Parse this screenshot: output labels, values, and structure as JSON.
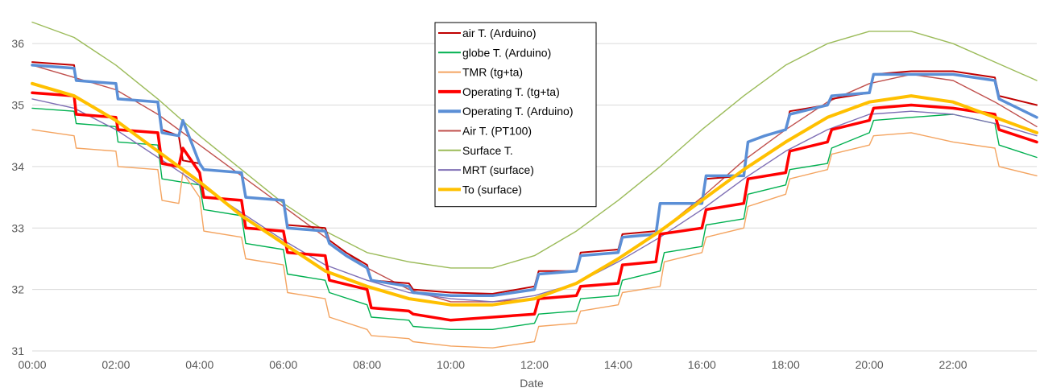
{
  "chart_data": {
    "type": "line",
    "title": "",
    "xlabel": "Date",
    "ylabel": "",
    "xlim": [
      0,
      24
    ],
    "ylim": [
      31,
      36.5
    ],
    "x_ticks": [
      "00:00",
      "02:00",
      "04:00",
      "06:00",
      "08:00",
      "10:00",
      "12:00",
      "14:00",
      "16:00",
      "18:00",
      "20:00",
      "22:00"
    ],
    "y_ticks": [
      "31",
      "32",
      "33",
      "34",
      "35",
      "36"
    ],
    "grid": "horizontal",
    "legend_position": "top-center",
    "series": [
      {
        "name": "air T. (Arduino)",
        "color": "#c00000",
        "width": 2,
        "x": [
          0,
          1,
          1.05,
          2,
          2.05,
          3,
          3.1,
          3.5,
          3.6,
          4,
          4.1,
          5,
          5.1,
          6,
          6.1,
          7,
          7.1,
          7.5,
          8,
          8.1,
          9,
          9.1,
          10,
          11,
          12,
          12.1,
          13,
          13.1,
          14,
          14.1,
          14.9,
          15,
          16,
          16.1,
          17,
          17.1,
          17.5,
          18,
          18.1,
          19,
          19.1,
          20,
          20.1,
          21,
          22,
          23,
          23.1,
          24
        ],
        "y": [
          35.7,
          35.65,
          35.4,
          35.35,
          35.1,
          35.05,
          34.6,
          34.5,
          34.1,
          34.05,
          33.95,
          33.9,
          33.5,
          33.45,
          33.05,
          33.0,
          32.8,
          32.6,
          32.4,
          32.15,
          32.1,
          32.0,
          31.95,
          31.93,
          32.05,
          32.3,
          32.3,
          32.6,
          32.65,
          32.9,
          32.95,
          33.4,
          33.4,
          33.8,
          33.85,
          34.4,
          34.5,
          34.6,
          34.9,
          35.0,
          35.1,
          35.2,
          35.5,
          35.55,
          35.55,
          35.45,
          35.15,
          35.0
        ]
      },
      {
        "name": "globe T. (Arduino)",
        "color": "#00b050",
        "width": 1.4,
        "x": [
          0,
          1,
          1.05,
          2,
          2.05,
          3,
          3.1,
          4,
          4.1,
          5,
          5.1,
          6,
          6.1,
          7,
          7.1,
          8,
          8.1,
          9,
          9.1,
          10,
          11,
          12,
          12.1,
          13,
          13.1,
          14,
          14.1,
          15,
          15.1,
          16,
          16.1,
          17,
          17.1,
          18,
          18.1,
          19,
          19.1,
          20,
          20.1,
          21,
          22,
          23,
          23.1,
          24
        ],
        "y": [
          34.95,
          34.9,
          34.7,
          34.65,
          34.4,
          34.35,
          33.8,
          33.7,
          33.3,
          33.2,
          32.75,
          32.65,
          32.25,
          32.15,
          31.95,
          31.75,
          31.55,
          31.5,
          31.4,
          31.35,
          31.35,
          31.45,
          31.6,
          31.65,
          31.85,
          31.9,
          32.15,
          32.3,
          32.6,
          32.7,
          33.05,
          33.15,
          33.55,
          33.7,
          33.95,
          34.05,
          34.3,
          34.55,
          34.75,
          34.8,
          34.85,
          34.7,
          34.35,
          34.15
        ]
      },
      {
        "name": "TMR (tg+ta)",
        "color": "#f4a460",
        "width": 1.4,
        "x": [
          0,
          1,
          1.05,
          2,
          2.05,
          3,
          3.1,
          3.5,
          3.6,
          4,
          4.1,
          5,
          5.1,
          6,
          6.1,
          7,
          7.1,
          8,
          8.1,
          9,
          9.1,
          10,
          11,
          12,
          12.1,
          13,
          13.1,
          14,
          14.1,
          15,
          15.1,
          16,
          16.1,
          17,
          17.1,
          18,
          18.1,
          19,
          19.1,
          20,
          20.1,
          21,
          22,
          23,
          23.1,
          24
        ],
        "y": [
          34.6,
          34.5,
          34.3,
          34.25,
          34.0,
          33.95,
          33.45,
          33.4,
          33.9,
          33.5,
          32.95,
          32.85,
          32.5,
          32.4,
          31.95,
          31.85,
          31.55,
          31.35,
          31.25,
          31.2,
          31.15,
          31.08,
          31.05,
          31.15,
          31.4,
          31.45,
          31.65,
          31.75,
          31.95,
          32.05,
          32.45,
          32.6,
          32.85,
          33.0,
          33.35,
          33.55,
          33.8,
          33.95,
          34.2,
          34.35,
          34.5,
          34.55,
          34.4,
          34.3,
          34.0,
          33.85
        ]
      },
      {
        "name": "Operating T. (tg+ta)",
        "color": "#ff0000",
        "width": 3.5,
        "x": [
          0,
          1,
          1.05,
          2,
          2.05,
          3,
          3.1,
          3.5,
          3.6,
          4,
          4.1,
          5,
          5.1,
          6,
          6.1,
          7,
          7.1,
          8,
          8.1,
          9,
          9.1,
          10,
          11,
          12,
          12.1,
          13,
          13.1,
          14,
          14.1,
          14.9,
          15,
          16,
          16.1,
          17,
          17.1,
          18,
          18.1,
          19,
          19.1,
          20,
          20.1,
          21,
          22,
          23,
          23.1,
          24
        ],
        "y": [
          35.2,
          35.15,
          34.85,
          34.8,
          34.6,
          34.55,
          34.05,
          34.0,
          34.3,
          33.9,
          33.5,
          33.45,
          33.0,
          32.95,
          32.6,
          32.55,
          32.15,
          32.0,
          31.7,
          31.65,
          31.6,
          31.5,
          31.55,
          31.6,
          31.85,
          31.9,
          32.05,
          32.1,
          32.4,
          32.45,
          32.9,
          33.0,
          33.3,
          33.4,
          33.8,
          33.9,
          34.25,
          34.4,
          34.6,
          34.75,
          34.95,
          35.0,
          34.95,
          34.85,
          34.6,
          34.4
        ]
      },
      {
        "name": "Operating T. (Arduino)",
        "color": "#5b8fd6",
        "width": 3.5,
        "x": [
          0,
          1,
          1.05,
          2,
          2.05,
          3,
          3.1,
          3.5,
          3.6,
          4,
          4.1,
          5,
          5.1,
          6,
          6.1,
          7,
          7.1,
          7.5,
          8,
          8.1,
          9,
          9.1,
          10,
          11,
          12,
          12.1,
          13,
          13.1,
          14,
          14.1,
          14.9,
          15,
          16,
          16.1,
          17,
          17.1,
          17.5,
          18,
          18.1,
          19,
          19.1,
          20,
          20.1,
          21,
          22,
          23,
          23.1,
          24
        ],
        "y": [
          35.65,
          35.6,
          35.4,
          35.35,
          35.1,
          35.05,
          34.55,
          34.5,
          34.75,
          34.05,
          33.95,
          33.9,
          33.5,
          33.45,
          33.0,
          32.95,
          32.75,
          32.55,
          32.35,
          32.15,
          32.05,
          31.95,
          31.9,
          31.9,
          32.0,
          32.25,
          32.3,
          32.55,
          32.6,
          32.85,
          32.9,
          33.4,
          33.4,
          33.85,
          33.85,
          34.4,
          34.5,
          34.6,
          34.85,
          35.0,
          35.15,
          35.2,
          35.5,
          35.5,
          35.5,
          35.4,
          35.1,
          34.8
        ]
      },
      {
        "name": "Air T. (PT100)",
        "color": "#c0504d",
        "width": 1.4,
        "x": [
          0,
          1,
          2,
          3,
          4,
          5,
          6,
          7,
          8,
          9,
          10,
          11,
          12,
          13,
          14,
          15,
          16,
          17,
          18,
          19,
          20,
          21,
          22,
          23,
          24
        ],
        "y": [
          35.65,
          35.45,
          35.25,
          34.85,
          34.35,
          33.85,
          33.35,
          32.85,
          32.35,
          32.0,
          31.8,
          31.8,
          31.85,
          32.1,
          32.5,
          32.95,
          33.5,
          34.1,
          34.6,
          35.05,
          35.35,
          35.5,
          35.4,
          35.05,
          34.65
        ]
      },
      {
        "name": "Surface T.",
        "color": "#9bbb59",
        "width": 1.4,
        "x": [
          0,
          1,
          2,
          3,
          4,
          5,
          6,
          7,
          8,
          9,
          10,
          11,
          12,
          13,
          14,
          15,
          16,
          17,
          18,
          19,
          20,
          21,
          22,
          23,
          24
        ],
        "y": [
          36.35,
          36.1,
          35.65,
          35.1,
          34.5,
          33.95,
          33.4,
          32.95,
          32.6,
          32.45,
          32.35,
          32.35,
          32.55,
          32.95,
          33.45,
          34.0,
          34.6,
          35.15,
          35.65,
          36.0,
          36.2,
          36.2,
          36.0,
          35.7,
          35.4
        ]
      },
      {
        "name": "MRT (surface)",
        "color": "#7f6fb5",
        "width": 1.4,
        "x": [
          0,
          1,
          2,
          3,
          4,
          5,
          6,
          7,
          8,
          9,
          10,
          11,
          12,
          13,
          14,
          15,
          16,
          17,
          18,
          19,
          20,
          21,
          22,
          23,
          24
        ],
        "y": [
          35.1,
          34.95,
          34.6,
          34.15,
          33.7,
          33.25,
          32.8,
          32.4,
          32.15,
          31.95,
          31.85,
          31.8,
          31.9,
          32.1,
          32.45,
          32.85,
          33.3,
          33.8,
          34.25,
          34.6,
          34.85,
          34.9,
          34.85,
          34.7,
          34.5
        ]
      },
      {
        "name": "To (surface)",
        "color": "#ffc000",
        "width": 4,
        "x": [
          0,
          1,
          2,
          3,
          4,
          5,
          6,
          7,
          8,
          9,
          10,
          11,
          12,
          13,
          14,
          15,
          16,
          17,
          18,
          19,
          20,
          21,
          22,
          23,
          24
        ],
        "y": [
          35.35,
          35.15,
          34.75,
          34.25,
          33.75,
          33.2,
          32.75,
          32.3,
          32.05,
          31.85,
          31.75,
          31.75,
          31.85,
          32.1,
          32.5,
          32.95,
          33.45,
          33.95,
          34.4,
          34.8,
          35.05,
          35.15,
          35.05,
          34.8,
          34.55
        ]
      }
    ]
  }
}
